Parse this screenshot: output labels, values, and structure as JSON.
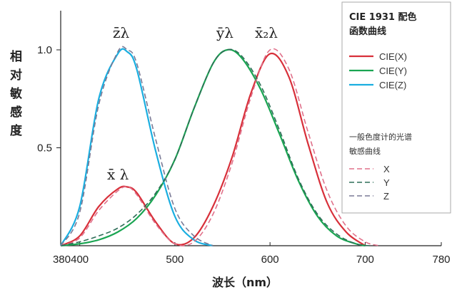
{
  "chart_data": {
    "type": "line",
    "xlabel": "波长（nm）",
    "ylabel": "相对敏感度",
    "xlim": [
      380,
      780
    ],
    "ylim": [
      0,
      1.0
    ],
    "x_ticks": [
      "380",
      "400",
      "500",
      "600",
      "700",
      "780"
    ],
    "y_ticks": [
      "0.5",
      "1.0"
    ],
    "curve_labels": {
      "z": "z̄λ",
      "y": "ȳλ",
      "x2": "x̄₂λ",
      "x1": "x̄ λ"
    },
    "legend": {
      "title_line1": "CIE 1931 配色",
      "title_line2": "函数曲线",
      "solid_entries": [
        "CIE(X)",
        "CIE(Y)",
        "CIE(Z)"
      ],
      "sub_title_line1": "一般色度计的光谱",
      "sub_title_line2": "敏感曲线",
      "dashed_entries": [
        "X",
        "Y",
        "Z"
      ]
    },
    "colors": {
      "x": "#d8303a",
      "y": "#1aa552",
      "z": "#1aaee0",
      "x_dash": "#e0708a",
      "y_dash": "#2e6e58",
      "z_dash": "#7a7a96"
    },
    "series": [
      {
        "name": "CIE(X)",
        "style": "solid",
        "color": "#d8303a",
        "x": [
          380,
          400,
          420,
          440,
          450,
          460,
          480,
          500,
          520,
          540,
          560,
          580,
          600,
          620,
          640,
          660,
          680,
          700
        ],
        "y": [
          0,
          0.05,
          0.2,
          0.29,
          0.3,
          0.27,
          0.12,
          0.01,
          0.04,
          0.2,
          0.45,
          0.78,
          0.98,
          0.86,
          0.52,
          0.22,
          0.07,
          0
        ]
      },
      {
        "name": "CIE(Y)",
        "style": "solid",
        "color": "#1aa552",
        "x": [
          380,
          400,
          420,
          440,
          460,
          480,
          500,
          520,
          540,
          555,
          570,
          590,
          610,
          630,
          650,
          670,
          690,
          700
        ],
        "y": [
          0,
          0.01,
          0.03,
          0.07,
          0.14,
          0.26,
          0.44,
          0.7,
          0.93,
          1.0,
          0.96,
          0.8,
          0.57,
          0.33,
          0.15,
          0.05,
          0.01,
          0
        ]
      },
      {
        "name": "CIE(Z)",
        "style": "solid",
        "color": "#1aaee0",
        "x": [
          380,
          400,
          420,
          440,
          450,
          460,
          480,
          500,
          520,
          540
        ],
        "y": [
          0,
          0.2,
          0.75,
          0.98,
          0.99,
          0.9,
          0.48,
          0.15,
          0.03,
          0
        ]
      },
      {
        "name": "X",
        "style": "dashed",
        "color": "#e0708a",
        "x": [
          380,
          400,
          420,
          440,
          450,
          460,
          480,
          500,
          520,
          540,
          560,
          580,
          600,
          620,
          640,
          660,
          680,
          700,
          715
        ],
        "y": [
          0,
          0.04,
          0.18,
          0.28,
          0.3,
          0.26,
          0.11,
          0.01,
          0.02,
          0.16,
          0.42,
          0.76,
          1.0,
          0.9,
          0.58,
          0.28,
          0.1,
          0.02,
          0
        ]
      },
      {
        "name": "Y",
        "style": "dashed",
        "color": "#2e6e58",
        "x": [
          380,
          400,
          420,
          440,
          460,
          480,
          500,
          520,
          540,
          555,
          570,
          590,
          610,
          630,
          650,
          670,
          690,
          705
        ],
        "y": [
          0,
          0.02,
          0.05,
          0.09,
          0.16,
          0.27,
          0.44,
          0.7,
          0.93,
          1.0,
          0.97,
          0.82,
          0.59,
          0.34,
          0.16,
          0.06,
          0.01,
          0
        ]
      },
      {
        "name": "Z",
        "style": "dashed",
        "color": "#7a7a96",
        "x": [
          380,
          400,
          420,
          440,
          450,
          460,
          480,
          500,
          520,
          540
        ],
        "y": [
          0,
          0.17,
          0.72,
          0.99,
          1.0,
          0.93,
          0.54,
          0.19,
          0.05,
          0
        ]
      }
    ]
  }
}
